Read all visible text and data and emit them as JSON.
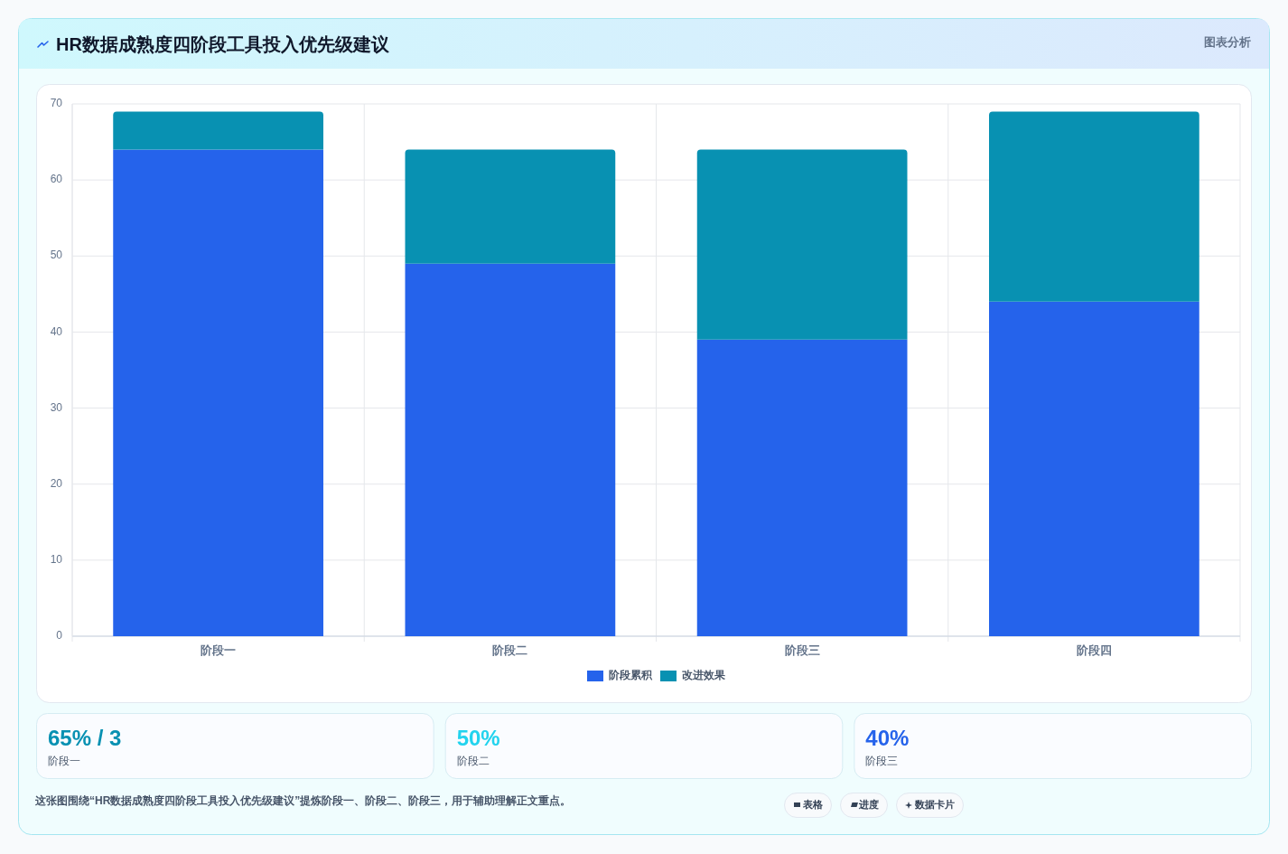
{
  "chart_data": [
    {
      "type": "bar",
      "title": "HR数据成熟度四阶段工具投入优先级建议",
      "categories": [
        "阶段一",
        "阶段二",
        "阶段三",
        "阶段四"
      ],
      "stacked": true,
      "series": [
        {
          "name": "阶段累积",
          "color": "#2563eb",
          "values": [
            64,
            49,
            39,
            44
          ]
        },
        {
          "name": "改进效果",
          "color": "#0891b2",
          "values": [
            5,
            15,
            25,
            25
          ]
        }
      ],
      "ylim": [
        0,
        70
      ],
      "yticks": [
        0,
        10,
        20,
        30,
        40,
        50,
        60,
        70
      ],
      "grid": true,
      "legend": "bottom",
      "annotations": [
        "图表分析",
        "这张图围绕“HR数据成熟度四阶段工具投入优先级建议”提炼阶段一、阶段二、阶段三，用于辅助理解正文重点。",
        "表格",
        "进度",
        "数据卡片"
      ]
    },
    {
      "type": "other",
      "title": "65% / 3",
      "subtitle": "阶段一",
      "color": "#0891b2"
    },
    {
      "type": "other",
      "title": "50%",
      "subtitle": "阶段二",
      "color": "#22d3ee"
    },
    {
      "type": "other",
      "title": "40%",
      "subtitle": "阶段三",
      "color": "#2563eb"
    }
  ]
}
